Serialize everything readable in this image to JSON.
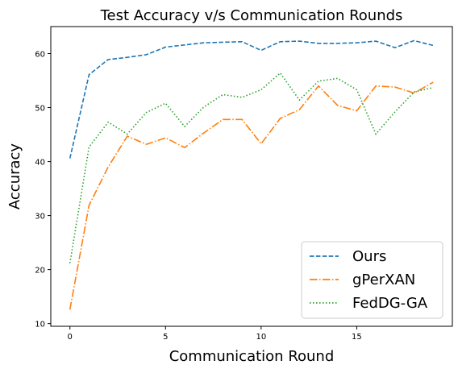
{
  "chart_data": {
    "type": "line",
    "title": "Test Accuracy v/s Communication Rounds",
    "xlabel": "Communication Round",
    "ylabel": "Accuracy",
    "xlim": [
      -1,
      20
    ],
    "ylim": [
      9.5,
      65
    ],
    "xticks": [
      0,
      5,
      10,
      15
    ],
    "yticks": [
      10,
      20,
      30,
      40,
      50,
      60
    ],
    "x": [
      0,
      1,
      2,
      3,
      4,
      5,
      6,
      7,
      8,
      9,
      10,
      11,
      12,
      13,
      14,
      15,
      16,
      17,
      18,
      19
    ],
    "series": [
      {
        "name": "Ours",
        "color": "#1f77b4",
        "dash": "dashed",
        "values": [
          40.6,
          56.1,
          58.9,
          59.3,
          59.8,
          61.2,
          61.6,
          62.0,
          62.1,
          62.2,
          60.6,
          62.2,
          62.3,
          61.9,
          61.9,
          62.0,
          62.3,
          61.1,
          62.4,
          61.5
        ]
      },
      {
        "name": "gPerXAN",
        "color": "#ff7f0e",
        "dash": "dashdot",
        "values": [
          12.6,
          31.9,
          39.0,
          44.7,
          43.2,
          44.4,
          42.6,
          45.3,
          47.8,
          47.8,
          43.3,
          48.0,
          49.6,
          54.0,
          50.4,
          49.4,
          54.0,
          53.8,
          52.7,
          54.7
        ]
      },
      {
        "name": "FedDG-GA",
        "color": "#2ca02c",
        "dash": "dotted",
        "values": [
          21.2,
          42.7,
          47.3,
          45.1,
          49.1,
          50.8,
          46.5,
          50.1,
          52.4,
          51.9,
          53.3,
          56.4,
          51.4,
          54.9,
          55.4,
          53.3,
          45.1,
          49.2,
          52.9,
          53.7
        ]
      }
    ],
    "legend": {
      "position": "lower-right"
    }
  }
}
